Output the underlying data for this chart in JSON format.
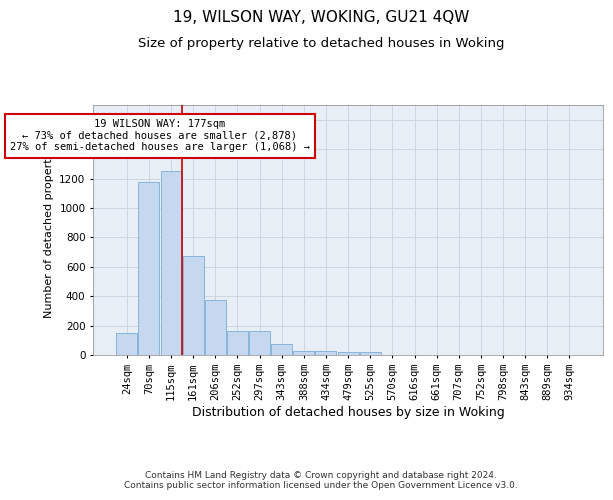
{
  "title": "19, WILSON WAY, WOKING, GU21 4QW",
  "subtitle": "Size of property relative to detached houses in Woking",
  "xlabel": "Distribution of detached houses by size in Woking",
  "ylabel": "Number of detached properties",
  "categories": [
    "24sqm",
    "70sqm",
    "115sqm",
    "161sqm",
    "206sqm",
    "252sqm",
    "297sqm",
    "343sqm",
    "388sqm",
    "434sqm",
    "479sqm",
    "525sqm",
    "570sqm",
    "616sqm",
    "661sqm",
    "707sqm",
    "752sqm",
    "798sqm",
    "843sqm",
    "889sqm",
    "934sqm"
  ],
  "values": [
    150,
    1175,
    1250,
    675,
    375,
    165,
    165,
    75,
    30,
    25,
    20,
    20,
    0,
    0,
    0,
    0,
    0,
    0,
    0,
    0,
    0
  ],
  "bar_color": "#c5d8ef",
  "bar_edge_color": "#7aadd4",
  "ylim": [
    0,
    1700
  ],
  "yticks": [
    0,
    200,
    400,
    600,
    800,
    1000,
    1200,
    1400,
    1600
  ],
  "grid_color": "#cdd5e0",
  "red_line_x": 2.5,
  "annotation_text": "19 WILSON WAY: 177sqm\n← 73% of detached houses are smaller (2,878)\n27% of semi-detached houses are larger (1,068) →",
  "annotation_box_color": "#ffffff",
  "annotation_box_edge": "#cc0000",
  "footer": "Contains HM Land Registry data © Crown copyright and database right 2024.\nContains public sector information licensed under the Open Government Licence v3.0.",
  "title_fontsize": 11,
  "subtitle_fontsize": 9.5,
  "xlabel_fontsize": 9,
  "ylabel_fontsize": 8,
  "tick_fontsize": 7.5,
  "annotation_fontsize": 7.5,
  "footer_fontsize": 6.5,
  "bg_color": "#e8eef5"
}
